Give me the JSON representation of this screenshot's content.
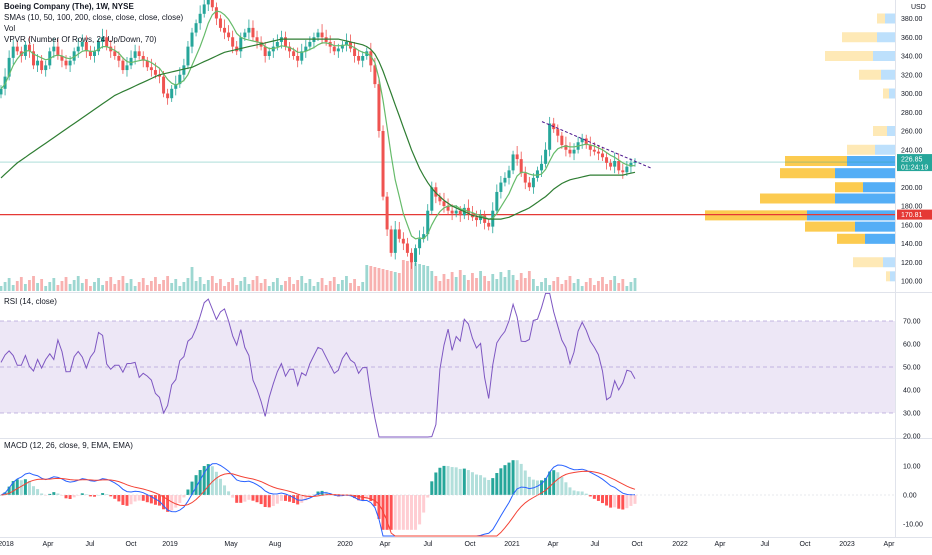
{
  "header": {
    "symbol_line": "Boeing Company (The), 1W, NYSE",
    "sma_line": "SMAs (10, 50, 100, 200, close, close, close, close)",
    "vol_line": "Vol",
    "vpvr_line": "VPVR (Number Of Rows, 24 Up/Down, 70)"
  },
  "colors": {
    "up": "#26a69a",
    "down": "#ef5350",
    "sma_fast": "#66bb6a",
    "sma_slow": "#2e7d32",
    "rsi": "#7e57c2",
    "rsi_band": "#ede7f6",
    "macd": "#2962ff",
    "signal": "#f44336",
    "support": "#e53935",
    "trendline": "#4a148c",
    "price_tag": "#26a69a",
    "level_tag": "#e53935",
    "vpvr_up": "#42a5f5",
    "vpvr_down": "#fbc02d"
  },
  "panes": {
    "rsi_label": "RSI (14, close)",
    "macd_label": "MACD (12, 26, close, 9, EMA, EMA)"
  },
  "price_axis": {
    "currency": "USD",
    "ticks": [
      "380.00",
      "360.00",
      "340.00",
      "320.00",
      "300.00",
      "280.00",
      "260.00",
      "240.00",
      "220.00",
      "200.00",
      "180.00",
      "160.00",
      "140.00",
      "120.00",
      "100.00"
    ],
    "last_price": "226.85",
    "countdown": "01:24:19",
    "support_level": "170.81"
  },
  "rsi_axis": {
    "ticks": [
      "70.00",
      "60.00",
      "50.00",
      "40.00",
      "30.00",
      "20.00"
    ]
  },
  "macd_axis": {
    "ticks": [
      "10.00",
      "0.00",
      "-10.00"
    ]
  },
  "time_axis": {
    "labels": [
      "2018",
      "Apr",
      "Jul",
      "Oct",
      "2019",
      "May",
      "Aug",
      "2020",
      "Apr",
      "Jul",
      "Oct",
      "2021",
      "Apr",
      "Jul",
      "Oct",
      "2022",
      "Apr",
      "Jul",
      "Oct",
      "2023",
      "Apr"
    ]
  },
  "chart_data": {
    "type": "candlestick",
    "symbol": "Boeing Company (The)",
    "interval": "1W",
    "exchange": "NYSE",
    "y_range": [
      90,
      400
    ],
    "closes": [
      305,
      318,
      338,
      350,
      345,
      340,
      352,
      345,
      330,
      335,
      325,
      330,
      345,
      350,
      340,
      335,
      330,
      335,
      345,
      350,
      355,
      345,
      340,
      345,
      355,
      360,
      350,
      345,
      340,
      335,
      325,
      330,
      338,
      345,
      340,
      335,
      328,
      325,
      320,
      318,
      300,
      295,
      305,
      310,
      320,
      330,
      350,
      365,
      375,
      385,
      395,
      400,
      392,
      380,
      370,
      365,
      360,
      350,
      345,
      360,
      365,
      370,
      360,
      355,
      350,
      340,
      345,
      350,
      355,
      360,
      350,
      345,
      340,
      335,
      345,
      350,
      355,
      360,
      365,
      360,
      355,
      350,
      345,
      348,
      352,
      355,
      348,
      340,
      335,
      340,
      345,
      330,
      310,
      260,
      190,
      155,
      130,
      155,
      145,
      140,
      130,
      120,
      135,
      145,
      150,
      175,
      200,
      190,
      185,
      180,
      175,
      172,
      175,
      170,
      178,
      172,
      168,
      165,
      170,
      162,
      158,
      175,
      195,
      205,
      210,
      218,
      235,
      230,
      215,
      205,
      200,
      210,
      218,
      225,
      240,
      268,
      262,
      255,
      245,
      240,
      236,
      240,
      248,
      252,
      245,
      240,
      238,
      236,
      232,
      226,
      222,
      228,
      218,
      216,
      222,
      226,
      227
    ],
    "sma_short": [
      305,
      310,
      320,
      330,
      337,
      342,
      345,
      346,
      342,
      340,
      338,
      336,
      337,
      340,
      341,
      340,
      338,
      337,
      339,
      342,
      345,
      346,
      345,
      345,
      347,
      350,
      350,
      348,
      346,
      343,
      338,
      334,
      333,
      334,
      335,
      336,
      335,
      333,
      330,
      327,
      321,
      315,
      311,
      309,
      311,
      314,
      320,
      330,
      340,
      350,
      362,
      375,
      384,
      388,
      387,
      384,
      379,
      372,
      364,
      360,
      358,
      357,
      356,
      355,
      354,
      350,
      348,
      348,
      349,
      351,
      350,
      349,
      347,
      344,
      344,
      345,
      347,
      349,
      352,
      354,
      354,
      353,
      351,
      351,
      351,
      352,
      351,
      349,
      346,
      344,
      343,
      340,
      333,
      316,
      293,
      264,
      234,
      208,
      190,
      172,
      160,
      148,
      145,
      146,
      145,
      150,
      160,
      168,
      174,
      178,
      180,
      180,
      180,
      177,
      176,
      174,
      173,
      171,
      170,
      168,
      166,
      167,
      172,
      179,
      186,
      193,
      203,
      212,
      216,
      216,
      214,
      213,
      213,
      214,
      219,
      228,
      236,
      241,
      243,
      244,
      243,
      243,
      244,
      245,
      246,
      245,
      244,
      242,
      240,
      237,
      234,
      232,
      229,
      226,
      224,
      223,
      223
    ],
    "sma_long": [
      210,
      214,
      218,
      222,
      226,
      229,
      232,
      235,
      238,
      241,
      244,
      247,
      250,
      253,
      256,
      259,
      262,
      265,
      268,
      271,
      274,
      277,
      280,
      283,
      286,
      289,
      292,
      295,
      298,
      300,
      302,
      304,
      306,
      308,
      310,
      312,
      314,
      316,
      318,
      320,
      321,
      322,
      323,
      324,
      325,
      326,
      327,
      328,
      330,
      332,
      334,
      336,
      338,
      340,
      342,
      344,
      345,
      346,
      347,
      348,
      349,
      350,
      351,
      352,
      353,
      354,
      355,
      356,
      357,
      358,
      358,
      358,
      358,
      358,
      358,
      358,
      358,
      358,
      358,
      358,
      358,
      358,
      358,
      358,
      357,
      356,
      355,
      354,
      353,
      352,
      350,
      347,
      342,
      334,
      324,
      312,
      300,
      288,
      276,
      264,
      252,
      240,
      230,
      220,
      212,
      205,
      199,
      194,
      190,
      186,
      183,
      180,
      178,
      176,
      174,
      172,
      170,
      169,
      168,
      167,
      166,
      166,
      166,
      166,
      167,
      168,
      170,
      172,
      174,
      176,
      178,
      181,
      184,
      187,
      190,
      194,
      198,
      201,
      204,
      206,
      208,
      209,
      210,
      211,
      212,
      213,
      213,
      213,
      213,
      213,
      213,
      213,
      213,
      213,
      214,
      215,
      216
    ]
  }
}
